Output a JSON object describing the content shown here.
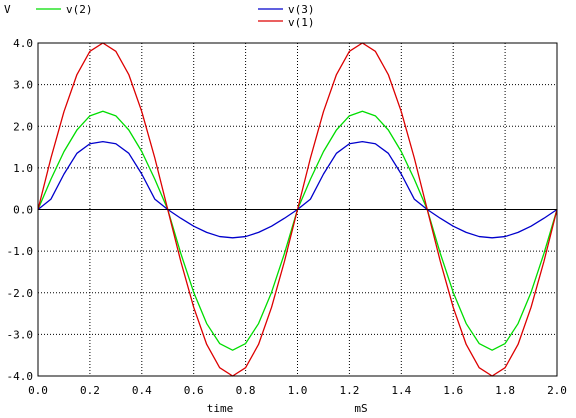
{
  "chart_data": {
    "type": "line",
    "y_unit_label": "V",
    "xlabel": "time",
    "x_unit_label": "mS",
    "xlim": [
      0.0,
      2.0
    ],
    "ylim": [
      -4.0,
      4.0
    ],
    "grid": true,
    "x_ticks": [
      "0.0",
      "0.2",
      "0.4",
      "0.6",
      "0.8",
      "1.0",
      "1.2",
      "1.4",
      "1.6",
      "1.8",
      "2.0"
    ],
    "y_ticks": [
      "4.0",
      "3.0",
      "2.0",
      "1.0",
      "0.0",
      "-1.0",
      "-2.0",
      "-3.0",
      "-4.0"
    ],
    "x": [
      0.0,
      0.05,
      0.1,
      0.15,
      0.2,
      0.25,
      0.3,
      0.35,
      0.4,
      0.45,
      0.5,
      0.55,
      0.6,
      0.65,
      0.7,
      0.75,
      0.8,
      0.85,
      0.9,
      0.95,
      1.0,
      1.05,
      1.1,
      1.15,
      1.2,
      1.25,
      1.3,
      1.35,
      1.4,
      1.45,
      1.5,
      1.55,
      1.6,
      1.65,
      1.7,
      1.75,
      1.8,
      1.85,
      1.9,
      1.95,
      2.0
    ],
    "series": [
      {
        "name": "v(2)",
        "color": "#00dd00",
        "values": [
          0.0,
          0.73,
          1.39,
          1.91,
          2.25,
          2.36,
          2.25,
          1.91,
          1.39,
          0.73,
          0.0,
          -1.05,
          -1.99,
          -2.74,
          -3.22,
          -3.38,
          -3.22,
          -2.74,
          -1.99,
          -1.05,
          0.0,
          0.73,
          1.39,
          1.91,
          2.25,
          2.36,
          2.25,
          1.91,
          1.39,
          0.73,
          0.0,
          -1.05,
          -1.99,
          -2.74,
          -3.22,
          -3.38,
          -3.22,
          -2.74,
          -1.99,
          -1.05,
          0.0
        ]
      },
      {
        "name": "v(3)",
        "color": "#0000cc",
        "values": [
          0.0,
          0.25,
          0.85,
          1.35,
          1.58,
          1.63,
          1.58,
          1.35,
          0.85,
          0.25,
          0.0,
          -0.21,
          -0.4,
          -0.55,
          -0.65,
          -0.68,
          -0.65,
          -0.55,
          -0.4,
          -0.21,
          0.0,
          0.25,
          0.85,
          1.35,
          1.58,
          1.63,
          1.58,
          1.35,
          0.85,
          0.25,
          0.0,
          -0.21,
          -0.4,
          -0.55,
          -0.65,
          -0.68,
          -0.65,
          -0.55,
          -0.4,
          -0.21,
          0.0
        ]
      },
      {
        "name": "v(1)",
        "color": "#dd0000",
        "values": [
          0.0,
          1.24,
          2.35,
          3.24,
          3.8,
          4.0,
          3.8,
          3.24,
          2.35,
          1.24,
          0.0,
          -1.24,
          -2.35,
          -3.24,
          -3.8,
          -4.0,
          -3.8,
          -3.24,
          -2.35,
          -1.24,
          0.0,
          1.24,
          2.35,
          3.24,
          3.8,
          4.0,
          3.8,
          3.24,
          2.35,
          1.24,
          0.0,
          -1.24,
          -2.35,
          -3.24,
          -3.8,
          -4.0,
          -3.8,
          -3.24,
          -2.35,
          -1.24,
          0.0
        ]
      }
    ]
  }
}
